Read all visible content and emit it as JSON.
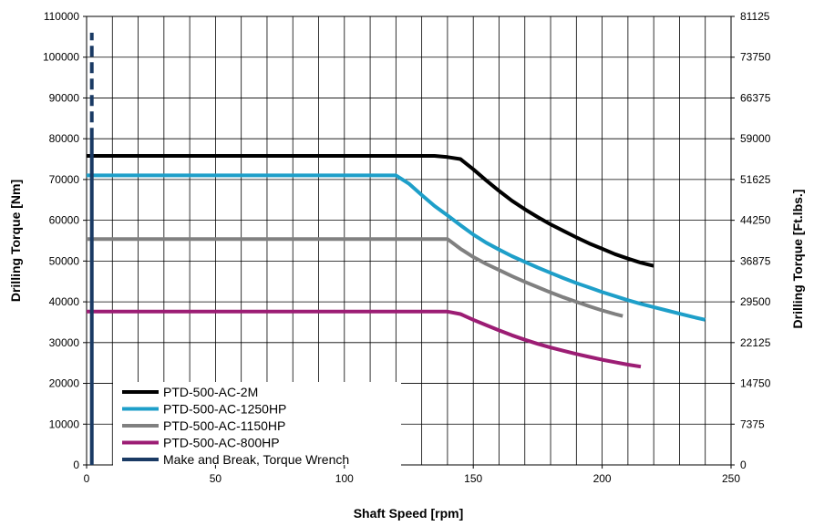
{
  "chart_data": {
    "type": "line",
    "xlabel": "Shaft Speed [rpm]",
    "ylabel": "Drilling Torque [Nm]",
    "y2label": "Drilling Torque [Ft.lbs.]",
    "xlim": [
      0,
      250
    ],
    "ylim": [
      0,
      110000
    ],
    "y2lim": [
      0,
      81125
    ],
    "grid": true,
    "legend_position": "bottom-left",
    "xticks": [
      0,
      50,
      100,
      150,
      200,
      250
    ],
    "xtick_labels": [
      "0",
      "50",
      "100",
      "150",
      "200",
      "250"
    ],
    "yticks": [
      0,
      10000,
      20000,
      30000,
      40000,
      50000,
      60000,
      70000,
      80000,
      90000,
      100000,
      110000
    ],
    "ytick_labels": [
      "0",
      "10000",
      "20000",
      "30000",
      "40000",
      "50000",
      "60000",
      "70000",
      "80000",
      "90000",
      "100000",
      "110000"
    ],
    "y2ticks": [
      0,
      7375,
      14750,
      22125,
      29500,
      36875,
      44250,
      51625,
      59000,
      66375,
      73750,
      81125
    ],
    "y2tick_labels": [
      "0",
      "7375",
      "14750",
      "22125",
      "29500",
      "36875",
      "44250",
      "51625",
      "59000",
      "66375",
      "73750",
      "81125"
    ],
    "series": [
      {
        "name": "PTD-500-AC-2M",
        "color": "#000000",
        "style": "solid",
        "x": [
          0,
          135,
          140,
          145,
          150,
          155,
          160,
          165,
          170,
          175,
          180,
          185,
          190,
          195,
          200,
          205,
          210,
          215,
          220
        ],
        "y": [
          75800,
          75800,
          75500,
          75000,
          72500,
          69800,
          67200,
          64800,
          62700,
          60800,
          59000,
          57400,
          55800,
          54300,
          53000,
          51700,
          50600,
          49600,
          48800
        ]
      },
      {
        "name": "PTD-500-AC-1250HP",
        "color": "#1e9fc9",
        "style": "solid",
        "x": [
          0,
          120,
          125,
          130,
          135,
          140,
          145,
          150,
          155,
          160,
          165,
          170,
          175,
          180,
          185,
          190,
          195,
          200,
          205,
          210,
          215,
          220,
          225,
          230,
          235,
          240
        ],
        "y": [
          71000,
          71000,
          69000,
          66200,
          63500,
          61200,
          58800,
          56500,
          54500,
          52800,
          51200,
          49800,
          48400,
          47100,
          45800,
          44600,
          43500,
          42400,
          41400,
          40400,
          39500,
          38700,
          37900,
          37100,
          36300,
          35600
        ]
      },
      {
        "name": "PTD-500-AC-1150HP",
        "color": "#808080",
        "style": "solid",
        "x": [
          0,
          140,
          145,
          150,
          155,
          160,
          165,
          170,
          175,
          180,
          185,
          190,
          195,
          200,
          205,
          208
        ],
        "y": [
          55400,
          55400,
          53000,
          51000,
          49300,
          47800,
          46300,
          44900,
          43600,
          42300,
          41100,
          40000,
          38900,
          37900,
          37000,
          36500
        ]
      },
      {
        "name": "PTD-500-AC-800HP",
        "color": "#9c1d74",
        "style": "solid",
        "x": [
          0,
          140,
          145,
          150,
          155,
          160,
          165,
          170,
          175,
          180,
          185,
          190,
          195,
          200,
          205,
          210,
          215
        ],
        "y": [
          37600,
          37600,
          37000,
          35600,
          34300,
          33000,
          31800,
          30700,
          29700,
          28800,
          28000,
          27200,
          26500,
          25800,
          25200,
          24600,
          24100
        ]
      },
      {
        "name": "Make and Break, Torque Wrench",
        "color": "#1a3a64",
        "style": "solid",
        "x": [
          2,
          2
        ],
        "y": [
          0,
          80000
        ]
      },
      {
        "name": "",
        "color": "#1a3a64",
        "style": "dashed",
        "x": [
          2,
          2
        ],
        "y": [
          80000,
          106000
        ]
      }
    ]
  }
}
